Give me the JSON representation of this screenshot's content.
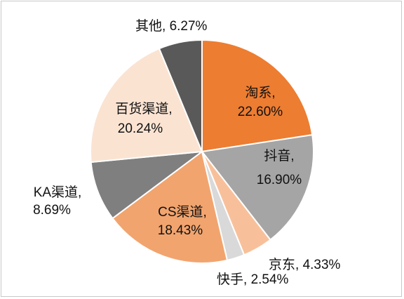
{
  "chart_data": {
    "type": "pie",
    "title": "",
    "slices": [
      {
        "name": "淘系",
        "label": "22.60%",
        "value": 22.6,
        "color": "#ED7D31"
      },
      {
        "name": "抖音",
        "label": "16.90%",
        "value": 16.9,
        "color": "#A5A5A5"
      },
      {
        "name": "京东",
        "label": "4.33%",
        "value": 4.33,
        "color": "#F8C09A"
      },
      {
        "name": "快手",
        "label": "2.54%",
        "value": 2.54,
        "color": "#D9D9D9"
      },
      {
        "name": "CS渠道",
        "label": "18.43%",
        "value": 18.43,
        "color": "#F2A46E"
      },
      {
        "name": "KA渠道",
        "label": "8.69%",
        "value": 8.69,
        "color": "#7F7F7F"
      },
      {
        "name": "百货渠道",
        "label": "20.24%",
        "value": 20.24,
        "color": "#FBE3D2"
      },
      {
        "name": "其他",
        "label": "6.27%",
        "value": 6.27,
        "color": "#595959"
      }
    ]
  }
}
